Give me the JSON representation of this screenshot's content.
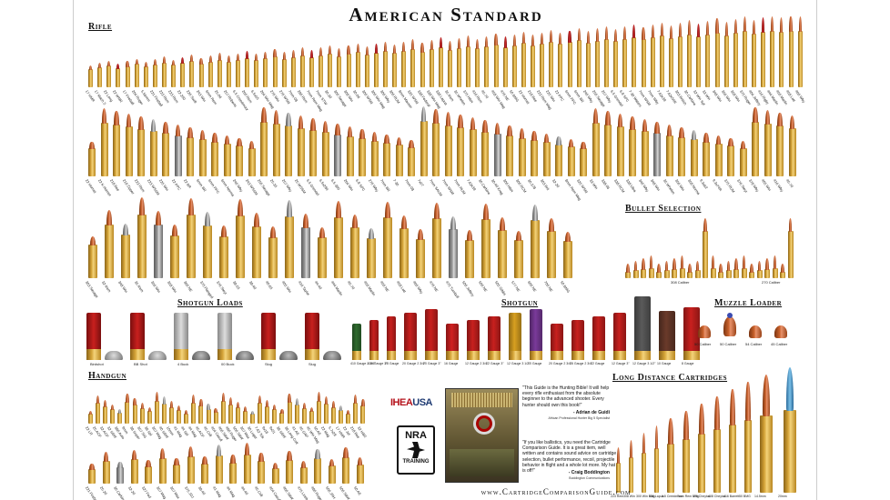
{
  "title": "American Standard",
  "sections": {
    "rifle": "Rifle",
    "bullet_selection": "Bullet Selection",
    "shotgun_loads": "Shotgun Loads",
    "shotgun": "Shotgun",
    "muzzle_loader": "Muzzle Loader",
    "handgun": "Handgun",
    "long_distance": "Long Distance Cartridges"
  },
  "colors": {
    "brass": "#d4a337",
    "copper": "#c8602a",
    "lead": "#9a9a9a",
    "red_hull": "#c8201e"
  },
  "rifle_row1": [
    "17 HMR",
    "17 Mach 2",
    "22 Long",
    "22 WMR",
    "17 Fireball",
    "204 Ruger",
    "5.56mm",
    "221 Fireball",
    "222 Rem",
    "223 Rem",
    "22-250",
    "220 Swift",
    "243 Win",
    "6mm Rem",
    "25-06",
    "257 Roberts",
    "6.5 Creedmoor",
    "260 Rem",
    "6.5x55",
    "264 Win Mag",
    "270 Win",
    "270 WSM",
    "7mm-08",
    "280 Rem",
    "7mm Rem Mag",
    "7mm STW",
    "30-30",
    "300 Savage",
    "308 Win",
    "30-06",
    "300 WSM",
    "300 Win Mag",
    "300 Wby",
    "300 RUM",
    "8mm Mauser",
    "325 WSM",
    "338 Federal",
    "338 Win Mag",
    "338 Lapua",
    "35 Rem",
    "35 Whelen",
    "375 H&H",
    "416 Rem",
    "45-70",
    "458 Win Mag",
    "470 NE",
    "50 BMG",
    "22 Hornet",
    "218 Bee",
    "222 Rem Mag",
    "225 Win",
    "22 PPC",
    "6mm PPC",
    "6mm BR",
    "240 Wby",
    "250 Savage",
    "257 Wby",
    "6.5 Grendel",
    "6.8 SPC",
    "7-30 Waters",
    "7mm WSM",
    "7mm Wby",
    "7.62x39",
    "7.62x54R",
    "303 British",
    "30 Carbine",
    "32 Win Spl",
    "33 Win",
    "348 Win",
    "356 Win",
    "358 Win",
    "375 Ruger",
    "404 Jeffery",
    "416 Rigby",
    "444 Marlin",
    "450 Marlin",
    "458 Lott",
    "460 Wby"
  ],
  "rifle_row2": [
    "22 Hornet",
    "22 K-Hornet",
    "218 Bee",
    "219 Zipper",
    "222 Rem",
    "223 WSSM",
    "225 Win",
    "22 PPC",
    "22 BR",
    "6mm BR",
    "6mm PPC",
    "6mm Norma",
    "240 Wby",
    "243 WSSM",
    "250 Savage",
    "25-35",
    "257 Wby",
    "25 WSSM",
    "6.5 Grendel",
    "6.5x284",
    "6.5-300",
    "264 Win",
    "6.8 SPC",
    "270 Wby",
    "7mm BR",
    "7-30",
    "7mm-08",
    "7x57",
    "7mm SAUM",
    "7mm WSM",
    "7mm RUM",
    "7.62x39",
    "30 Carbine",
    "30-40 Krag",
    "300 H&H",
    "300 RCM",
    "30-378",
    "303 Brit",
    "32-20",
    "8mm Rem Mag",
    "325 WSM",
    "33 Win",
    "338-06",
    "338 RCM",
    "338 Ultra",
    "340 Wby",
    "348 Win",
    "35 Whelen",
    "356 Win",
    "358 Norma",
    "9.3x62",
    "9.3x74R",
    "375 RUM",
    "376 Steyr",
    "378 Wby",
    "405 Win",
    "416 Wby",
    "45-70"
  ],
  "rifle_row3": [
    "303 Savage",
    "32 Rem",
    "348 Win",
    "35 Rem",
    "356 Win",
    "358 Win",
    "360 NE",
    "375 Flanged",
    "376 Steyr",
    "38-55",
    "38-40",
    "40-65",
    "405 Win",
    "416 Taylor",
    "44-40",
    "444 Marlin",
    "45-70",
    "450 Marlin",
    "450 NE",
    "458 Lott",
    "460 Wby",
    "470 NE",
    "475 Turnbull",
    "500 Jeffery",
    "500 NE",
    "505 Gibbs",
    "577 NE",
    "600 NE",
    "700 NE",
    "50 BMG"
  ],
  "bullet_selection": {
    "groups": [
      "308 Caliber",
      "270 Caliber"
    ]
  },
  "shotgun_loads": [
    "Birdshot",
    "BB Shot",
    "4 Buck",
    "00 Buck",
    "Slug",
    "Slug"
  ],
  "shotgun": [
    "410 Gauge 2 3/4\"",
    "410 Gauge 3\"",
    "28 Gauge",
    "20 Gauge 2 3/4\"",
    "20 Gauge 3\"",
    "16 Gauge",
    "12 Gauge 2 3/4\"",
    "12 Gauge 3\"",
    "12 Gauge 3 1/2\"",
    "10 Gauge",
    "20 Gauge 2 3/4\"",
    "16 Gauge 2 3/4\"",
    "12 Gauge",
    "12 Gauge 3\"",
    "12 Gauge 3 1/2\"",
    "10 Gauge",
    "8 Gauge"
  ],
  "muzzle_loader": [
    "50 Caliber",
    "50 Caliber",
    "54 Caliber",
    "45 Caliber"
  ],
  "handgun_row1": [
    "22 LR",
    "25 ACP",
    "32 ACP",
    "32 S&W",
    "380 Auto",
    "9mm",
    "38 Super",
    "357 SIG",
    "38 Spl",
    "357 Mag",
    "40 S&W",
    "10mm",
    "41 Mag",
    "44 Spl",
    "44 Mag",
    "45 ACP",
    "45 Colt",
    "454 Casull",
    "460 S&W",
    "480 Ruger",
    "500 S&W",
    "357 Max",
    "30 Luger",
    "7.62 Tok",
    "9x18",
    "9x21",
    "38 S&W",
    "38 Long Colt",
    "41 AE",
    "45 GAP",
    "45 Win Mag",
    "50 AE",
    "22 Mag",
    "5.7x28",
    "17 HMR",
    "22 Jet",
    "218 Bee",
    "32 H&R"
  ],
  "handgun_row2": [
    "221 Fireball",
    "25-20",
    "30 Carbine",
    "32-20",
    "327 Fed",
    "357 Mag",
    "357 Max",
    "375 JDJ",
    "38-40",
    "41 Mag",
    "44 Mag",
    "44-40",
    "45 Colt",
    "454 Casull",
    "460 S&W",
    "475 Linebaugh",
    "480 Ruger",
    "500 JRH",
    "500 S&W",
    "50 AE"
  ],
  "quotes": {
    "q1": "\"This Guide is the Hunting Bible! It will help every rifle enthusiast from the absolute beginner to the advanced shooter. Every hunter should own this book!\"",
    "a1": "- Adrian de Guidi",
    "a1_sub": "African Professional Hunter Big 5 Specialist",
    "q2": "\"If you like ballistics, you need the Cartridge Comparison Guide. It is a great item, well written and contains sound advice on cartridge selection, bullet performance, recoil, projectile behavior in flight and a whole lot more. My hat is off!\"",
    "a2": "- Craig Boddington",
    "a2_sub": "Boddington Communications"
  },
  "logos": {
    "ihea": "IHEA",
    "ihea_usa": "USA",
    "nra": "NRA",
    "nra_sub": "TRAINING"
  },
  "long_distance": [
    "223 Rem",
    "308 Win",
    "300 Win Mag",
    "338 Lapua",
    "6.5 Creedmoor",
    "7mm Rem Mag",
    "375 Cheytac",
    "408 Cheytac",
    "416 Barrett",
    "50 BMG",
    "14.5mm",
    "20mm"
  ],
  "url": "www.CartridgeComparisonGuide.com"
}
